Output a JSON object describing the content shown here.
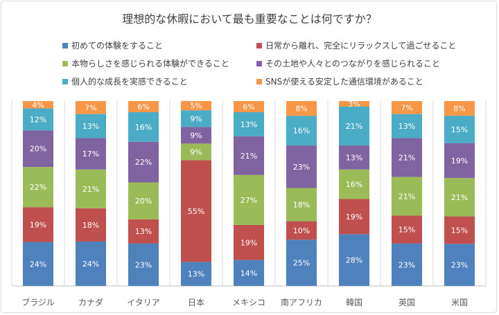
{
  "chart_data": {
    "type": "bar",
    "stacked": "percent",
    "title": "理想的な休暇において最も重要なことは何ですか？",
    "categories": [
      "ブラジル",
      "カナダ",
      "イタリア",
      "日本",
      "メキシコ",
      "南アフリカ",
      "韓国",
      "英国",
      "米国"
    ],
    "series": [
      {
        "name": "初めての体験をすること",
        "color": "#4F81BD",
        "values": [
          24,
          24,
          23,
          13,
          14,
          25,
          28,
          23,
          23
        ]
      },
      {
        "name": "日常から離れ、完全にリラックスして過ごせること",
        "color": "#C0504D",
        "values": [
          19,
          18,
          13,
          55,
          19,
          10,
          19,
          15,
          15
        ]
      },
      {
        "name": "本物らしさを感じられる体験ができること",
        "color": "#9BBB59",
        "values": [
          22,
          21,
          20,
          9,
          27,
          18,
          16,
          21,
          21
        ]
      },
      {
        "name": "その土地や人々とのつながりを感じられること",
        "color": "#8064A2",
        "values": [
          20,
          17,
          22,
          9,
          21,
          23,
          13,
          21,
          19
        ]
      },
      {
        "name": "個人的な成長を実感できること",
        "color": "#4BACC6",
        "values": [
          12,
          13,
          16,
          9,
          13,
          16,
          21,
          13,
          15
        ]
      },
      {
        "name": "SNSが使える安定した通信環境があること",
        "color": "#F79646",
        "values": [
          4,
          7,
          6,
          5,
          6,
          8,
          3,
          7,
          8
        ]
      }
    ],
    "value_suffix": "%",
    "legend_position": "top",
    "grid": false
  }
}
